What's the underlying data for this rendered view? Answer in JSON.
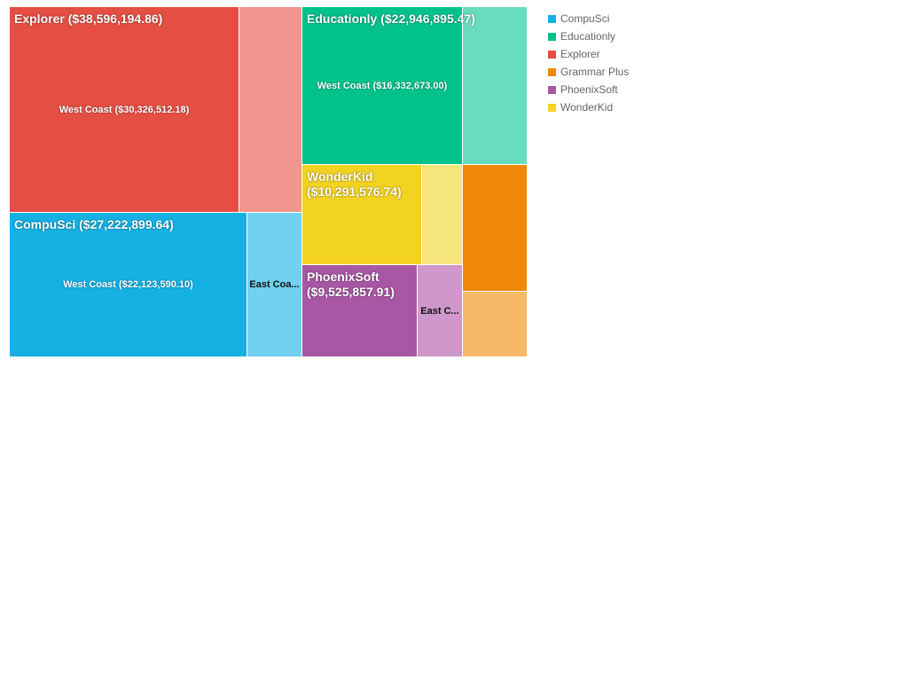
{
  "chart_data": {
    "type": "treemap",
    "title": "",
    "groups": [
      {
        "name": "Explorer",
        "label": "Explorer ($38,596,194.86)",
        "total": 38596194.86,
        "leaves": [
          {
            "name": "West Coast",
            "label": "West Coast ($30,326,512.18)",
            "value": 30326512.18
          },
          {
            "name": "",
            "label": "",
            "value": 8269682.68
          }
        ]
      },
      {
        "name": "CompuSci",
        "label": "CompuSci ($27,222,899.64)",
        "total": 27222899.64,
        "leaves": [
          {
            "name": "West Coast",
            "label": "West Coast ($22,123,590.10)",
            "value": 22123590.1
          },
          {
            "name": "East Coast",
            "label": "East Coa...",
            "value": 5099309.54
          }
        ]
      },
      {
        "name": "Educationly",
        "label": "Educationly ($22,946,895.47)",
        "total": 22946895.47,
        "leaves": [
          {
            "name": "West Coast",
            "label": "West Coast ($16,332,673.00)",
            "value": 16332673.0
          },
          {
            "name": "",
            "label": "",
            "value": 6614222.47
          }
        ]
      },
      {
        "name": "WonderKid",
        "label": "WonderKid ($10,291,576.74)",
        "total": 10291576.74,
        "leaves": [
          {
            "name": "",
            "label": "",
            "value": 6900000
          },
          {
            "name": "",
            "label": "",
            "value": 3391576.74
          }
        ]
      },
      {
        "name": "PhoenixSoft",
        "label": "PhoenixSoft ($9,525,857.91)",
        "total": 9525857.91,
        "leaves": [
          {
            "name": "",
            "label": "",
            "value": 6050000
          },
          {
            "name": "East Coast",
            "label": "East C...",
            "value": 3475857.91
          }
        ]
      },
      {
        "name": "Grammar Plus",
        "label": "",
        "total": 8490000,
        "leaves": [
          {
            "name": "",
            "label": "",
            "value": 5800000
          },
          {
            "name": "",
            "label": "",
            "value": 2690000
          }
        ]
      }
    ],
    "legend": {
      "position": "right",
      "items": [
        {
          "name": "CompuSci",
          "color": "#15b1e3"
        },
        {
          "name": "Educationly",
          "color": "#02c28c"
        },
        {
          "name": "Explorer",
          "color": "#e54f43"
        },
        {
          "name": "Grammar Plus",
          "color": "#f0880a"
        },
        {
          "name": "PhoenixSoft",
          "color": "#a857a5"
        },
        {
          "name": "WonderKid",
          "color": "#f3d321"
        }
      ]
    },
    "colors": {
      "Explorer": {
        "primary": "#e54f43",
        "secondary": "#f0968f"
      },
      "CompuSci": {
        "primary": "#15b1e3",
        "secondary": "#72d0f0"
      },
      "Educationly": {
        "primary": "#02c28c",
        "secondary": "#68dcbe"
      },
      "WonderKid": {
        "primary": "#f3d321",
        "secondary": "#f6e57c"
      },
      "PhoenixSoft": {
        "primary": "#a857a5",
        "secondary": "#cf97cc"
      },
      "Grammar Plus": {
        "primary": "#f0880a",
        "secondary": "#f7b868"
      }
    }
  }
}
